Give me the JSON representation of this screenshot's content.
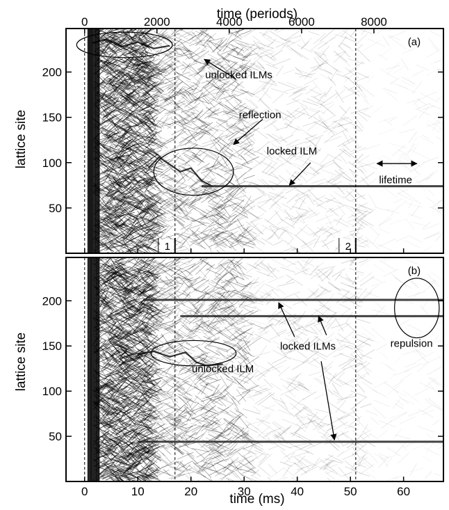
{
  "chart_data": {
    "type": "heatmap",
    "description_axes": {
      "bottom_xlabel": "time  (ms)",
      "top_xlabel": "time (periods)",
      "ylabel": "lattice site"
    },
    "x_ms": {
      "range": [
        -3.5,
        67.5
      ],
      "ticks": [
        0,
        10,
        20,
        30,
        40,
        50,
        60
      ],
      "tick_labels": [
        "0",
        "10",
        "20",
        "30",
        "40",
        "50",
        "60"
      ]
    },
    "x_periods": {
      "ticks": [
        0,
        2000,
        4000,
        6000,
        8000
      ],
      "tick_labels": [
        "0",
        "2000",
        "4000",
        "6000",
        "8000"
      ],
      "periods_per_ms": 147
    },
    "y": {
      "range": [
        0,
        248
      ],
      "ticks": [
        50,
        100,
        150,
        200
      ],
      "tick_labels": [
        "50",
        "100",
        "150",
        "200"
      ]
    },
    "dashed_lines_ms": [
      0,
      17,
      51
    ],
    "markers": [
      {
        "label": "1",
        "x_ms": 17
      },
      {
        "label": "2",
        "x_ms": 51
      }
    ],
    "panels": [
      {
        "tag": "(a)",
        "locked_ilms": [
          {
            "site": 74,
            "start_ms": 22,
            "end_ms": 67.5
          }
        ],
        "unlocked_tracks": [
          [
            [
              1.5,
              232
            ],
            [
              4,
              236
            ],
            [
              7,
              228
            ],
            [
              10,
              233
            ],
            [
              13,
              226
            ],
            [
              16,
              229
            ]
          ],
          [
            [
              12,
              94
            ],
            [
              14,
              106
            ],
            [
              16,
              98
            ],
            [
              18,
              90
            ],
            [
              20,
              94
            ],
            [
              22,
              80
            ],
            [
              24,
              74
            ]
          ]
        ],
        "ellipses": [
          {
            "cx": 7.5,
            "cy": 230,
            "rx": 9,
            "ry": 14
          },
          {
            "cx": 20.5,
            "cy": 90,
            "rx": 7.5,
            "ry": 26
          }
        ],
        "annotations": [
          {
            "text": "unlocked ILMs",
            "x_ms": 29,
            "y": 193
          },
          {
            "text": "reflection",
            "x_ms": 33,
            "y": 149
          },
          {
            "text": "locked ILM",
            "x_ms": 39,
            "y": 109
          },
          {
            "text": "lifetime",
            "x_ms": 58.5,
            "y": 77
          }
        ],
        "arrows": [
          {
            "from": [
              28.5,
              192
            ],
            "to": [
              22.5,
              214
            ]
          },
          {
            "from": [
              33.5,
              148
            ],
            "to": [
              28,
              120
            ]
          },
          {
            "from": [
              42.5,
              100
            ],
            "to": [
              38.5,
              75
            ]
          }
        ],
        "double_arrow": {
          "from_ms": 55,
          "to_ms": 62.5,
          "y": 99
        }
      },
      {
        "tag": "(b)",
        "locked_ilms": [
          {
            "site": 201,
            "start_ms": 11,
            "end_ms": 67.5
          },
          {
            "site": 183,
            "start_ms": 18,
            "end_ms": 67.5
          },
          {
            "site": 44,
            "start_ms": 10,
            "end_ms": 67.5
          }
        ],
        "unlocked_tracks": [
          [
            [
              10,
              141
            ],
            [
              13,
              144
            ],
            [
              16,
              138
            ],
            [
              19,
              143
            ],
            [
              21,
              132
            ],
            [
              23,
              128
            ],
            [
              26,
              130
            ]
          ]
        ],
        "ellipses": [
          {
            "cx": 20.5,
            "cy": 142,
            "rx": 8,
            "ry": 14
          },
          {
            "cx": 62.5,
            "cy": 192,
            "rx": 4.2,
            "ry": 33
          }
        ],
        "annotations": [
          {
            "text": "unlocked ILM",
            "x_ms": 26,
            "y": 121
          },
          {
            "text": "locked ILMs",
            "x_ms": 42,
            "y": 146
          },
          {
            "text": "repulsion",
            "x_ms": 61.5,
            "y": 149
          }
        ],
        "arrows": [
          {
            "from": [
              39.5,
              160
            ],
            "to": [
              36.5,
              198
            ]
          },
          {
            "from": [
              45.5,
              162
            ],
            "to": [
              44,
              183
            ]
          },
          {
            "from": [
              44.5,
              133
            ],
            "to": [
              47,
              46
            ]
          }
        ]
      }
    ]
  }
}
